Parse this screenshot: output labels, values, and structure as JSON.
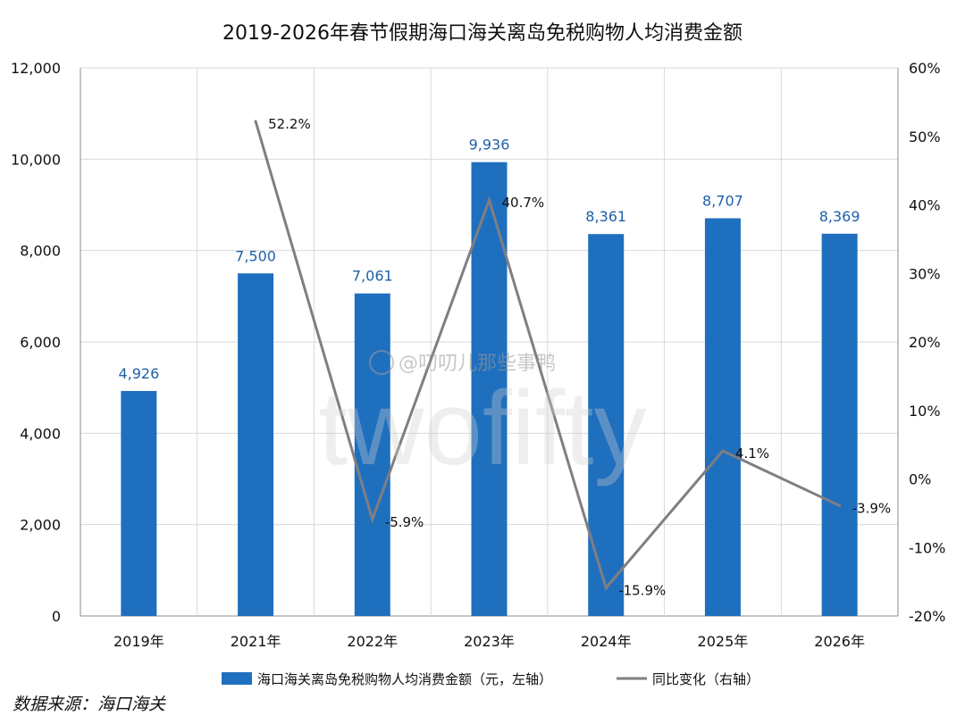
{
  "chart_data": {
    "type": "bar",
    "title": "2019-2026年春节假期海口海关离岛免税购物人均消费金额",
    "categories": [
      "2019年",
      "2021年",
      "2022年",
      "2023年",
      "2024年",
      "2025年",
      "2026年"
    ],
    "series": [
      {
        "name": "海口海关离岛免税购物人均消费金额（元，左轴）",
        "type": "bar",
        "axis": "left",
        "values": [
          4926,
          7500,
          7061,
          9936,
          8361,
          8707,
          8369
        ],
        "labels": [
          "4,926",
          "7,500",
          "7,061",
          "9,936",
          "8,361",
          "8,707",
          "8,369"
        ],
        "color": "#1f6fbf"
      },
      {
        "name": "同比变化（右轴）",
        "type": "line",
        "axis": "right",
        "values": [
          null,
          52.2,
          -5.9,
          40.7,
          -15.9,
          4.1,
          -3.9
        ],
        "labels": [
          "",
          "52.2%",
          "-5.9%",
          "40.7%",
          "-15.9%",
          "4.1%",
          "-3.9%"
        ],
        "color": "#7f7f7f"
      }
    ],
    "y_left": {
      "range": [
        0,
        12000
      ],
      "ticks": [
        0,
        2000,
        4000,
        6000,
        8000,
        10000,
        12000
      ],
      "tick_labels": [
        "0",
        "2,000",
        "4,000",
        "6,000",
        "8,000",
        "10,000",
        "12,000"
      ]
    },
    "y_right": {
      "range": [
        -20,
        60
      ],
      "ticks": [
        -20,
        -10,
        0,
        10,
        20,
        30,
        40,
        50,
        60
      ],
      "tick_labels": [
        "-20%",
        "-10%",
        "0%",
        "10%",
        "20%",
        "30%",
        "40%",
        "50%",
        "60%"
      ]
    },
    "grid": true,
    "legend": "bottom"
  },
  "source": "数据来源：海口海关",
  "watermark": {
    "handle": "@叨叨儿那些事鸭",
    "brand": "twofifty"
  }
}
